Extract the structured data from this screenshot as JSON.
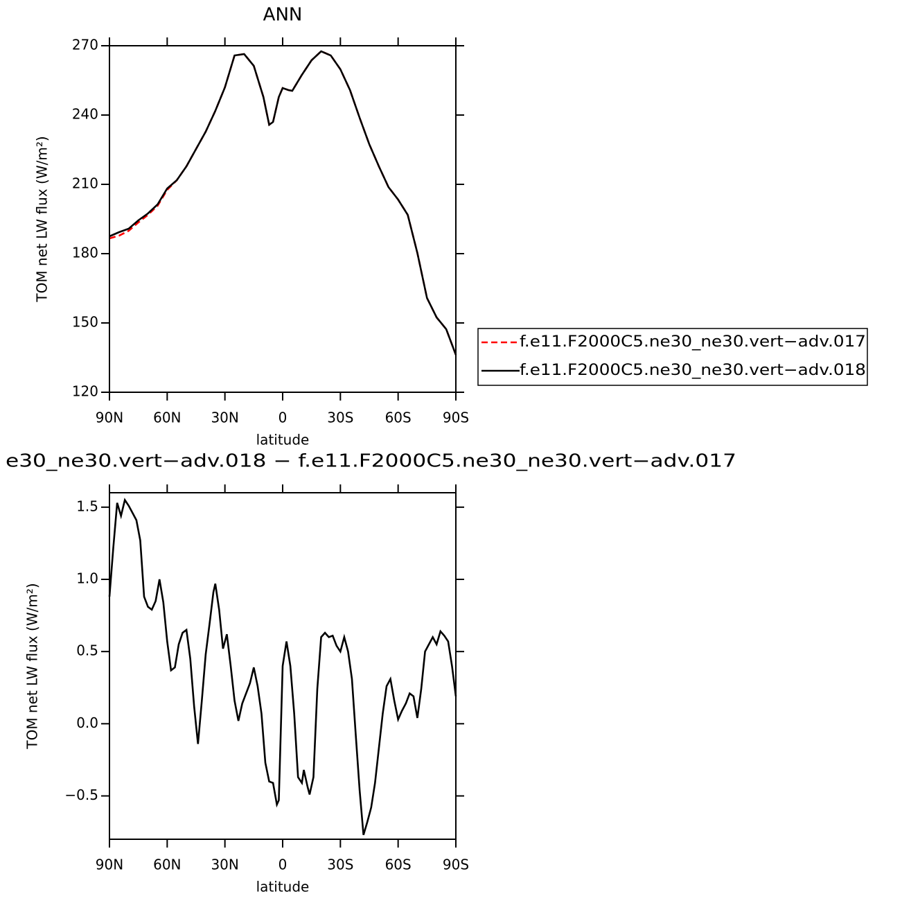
{
  "chart_data": [
    {
      "type": "line",
      "title": "ANN",
      "xlabel": "latitude",
      "ylabel": "TOM net LW flux (W/m²)",
      "x": [
        90,
        85,
        80,
        75,
        70,
        65,
        60,
        55,
        50,
        45,
        40,
        35,
        30,
        25,
        20,
        15,
        10,
        7,
        5,
        2,
        0,
        -3,
        -5,
        -10,
        -15,
        -20,
        -25,
        -30,
        -35,
        -40,
        -45,
        -50,
        -55,
        -60,
        -65,
        -70,
        -75,
        -80,
        -85,
        -90
      ],
      "series": [
        {
          "name": "f.e11.F2000C5.ne30_ne30.vert−adv.017",
          "color": "#ff0000",
          "line_style": "dashed",
          "values": [
            186.6,
            187.8,
            189.9,
            193.5,
            196.8,
            200.7,
            207.6,
            211.8,
            217.8,
            225.3,
            232.8,
            241.8,
            252,
            265.8,
            266.4,
            261.3,
            247.8,
            235.8,
            237,
            247.8,
            251.7,
            250.8,
            250.5,
            257.4,
            263.7,
            267.6,
            265.8,
            259.8,
            250.8,
            238.8,
            227.4,
            217.8,
            208.8,
            203.4,
            196.8,
            180.3,
            160.8,
            152.4,
            147.3,
            136.2
          ]
        },
        {
          "name": "f.e11.F2000C5.ne30_ne30.vert−adv.018",
          "color": "#000000",
          "line_style": "solid",
          "values": [
            187.5,
            189.3,
            190.8,
            194.4,
            197.4,
            201.3,
            208.2,
            211.8,
            217.8,
            225.3,
            232.8,
            241.8,
            252,
            265.8,
            266.4,
            261.3,
            247.8,
            235.8,
            237,
            247.8,
            251.7,
            250.8,
            250.5,
            257.4,
            263.7,
            267.6,
            265.8,
            259.8,
            250.8,
            238.8,
            227.4,
            217.8,
            208.8,
            203.4,
            196.8,
            180.3,
            160.8,
            152.4,
            147.3,
            136.2
          ]
        }
      ],
      "xlim": [
        90,
        -90
      ],
      "xticks": [
        {
          "value": 90,
          "label": "90N"
        },
        {
          "value": 60,
          "label": "60N"
        },
        {
          "value": 30,
          "label": "30N"
        },
        0,
        {
          "value": -30,
          "label": "30S"
        },
        {
          "value": -60,
          "label": "60S"
        },
        {
          "value": -90,
          "label": "90S"
        }
      ],
      "ylim": [
        120,
        270
      ],
      "yticks": [
        120,
        150,
        180,
        210,
        240,
        270
      ],
      "legend": "right",
      "grid": false
    },
    {
      "type": "line",
      "title": "e30_ne30.vert−adv.018 − f.e11.F2000C5.ne30_ne30.vert−adv.017",
      "xlabel": "latitude",
      "ylabel": "TOM net LW flux (W/m²)",
      "x": [
        90,
        88,
        86,
        84,
        82,
        80,
        78,
        76,
        74,
        72,
        70,
        68,
        66,
        64,
        62,
        60,
        58,
        56,
        54,
        52,
        50,
        48,
        46,
        44,
        42,
        40,
        38,
        36,
        35,
        33,
        31,
        29,
        27,
        25,
        23,
        21,
        19,
        17,
        15,
        13,
        11,
        9,
        7,
        5,
        3,
        2,
        0,
        -2,
        -4,
        -6,
        -8,
        -10,
        -11,
        -13,
        -14,
        -16,
        -18,
        -20,
        -22,
        -24,
        -26,
        -28,
        -30,
        -32,
        -34,
        -36,
        -38,
        -40,
        -42,
        -44,
        -46,
        -48,
        -50,
        -52,
        -54,
        -56,
        -58,
        -60,
        -62,
        -64,
        -66,
        -68,
        -70,
        -72,
        -74,
        -76,
        -78,
        -80,
        -82,
        -84,
        -86,
        -88,
        -90
      ],
      "values": [
        0.88,
        1.22,
        1.53,
        1.44,
        1.55,
        1.51,
        1.46,
        1.41,
        1.27,
        0.88,
        0.81,
        0.79,
        0.85,
        1.0,
        0.84,
        0.57,
        0.37,
        0.39,
        0.55,
        0.63,
        0.65,
        0.45,
        0.12,
        -0.14,
        0.16,
        0.48,
        0.69,
        0.91,
        0.97,
        0.79,
        0.52,
        0.62,
        0.4,
        0.16,
        0.02,
        0.14,
        0.21,
        0.28,
        0.39,
        0.26,
        0.07,
        -0.27,
        -0.4,
        -0.41,
        -0.56,
        -0.53,
        0.4,
        0.57,
        0.4,
        0.07,
        -0.37,
        -0.41,
        -0.32,
        -0.44,
        -0.49,
        -0.37,
        0.24,
        0.6,
        0.63,
        0.6,
        0.61,
        0.54,
        0.5,
        0.6,
        0.5,
        0.31,
        -0.08,
        -0.46,
        -0.77,
        -0.68,
        -0.58,
        -0.41,
        -0.17,
        0.07,
        0.26,
        0.31,
        0.16,
        0.03,
        0.09,
        0.14,
        0.21,
        0.19,
        0.04,
        0.24,
        0.5,
        0.55,
        0.6,
        0.55,
        0.64,
        0.61,
        0.57,
        0.4,
        0.19
      ],
      "color": "#000000",
      "xlim": [
        90,
        -90
      ],
      "xticks": [
        {
          "value": 90,
          "label": "90N"
        },
        {
          "value": 60,
          "label": "60N"
        },
        {
          "value": 30,
          "label": "30N"
        },
        0,
        {
          "value": -30,
          "label": "30S"
        },
        {
          "value": -60,
          "label": "60S"
        },
        {
          "value": -90,
          "label": "90S"
        }
      ],
      "ylim": [
        -0.8,
        1.6
      ],
      "yticks": [
        {
          "value": -0.5,
          "label": "−0.5"
        },
        {
          "value": 0,
          "label": "0.0"
        },
        0.5,
        {
          "value": 1,
          "label": "1.0"
        },
        1.5
      ],
      "grid": false
    }
  ]
}
